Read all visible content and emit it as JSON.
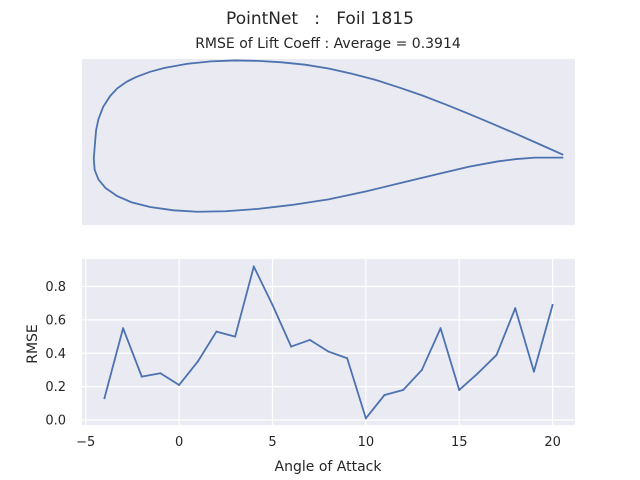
{
  "figure": {
    "suptitle": "PointNet   :   Foil 1815",
    "background_color": "#ffffff",
    "axes_facecolor": "#eaeaf2",
    "grid_color": "#ffffff",
    "line_color": "#4c72b0",
    "text_color": "#262626"
  },
  "chart_data": [
    {
      "type": "line",
      "title": "RMSE of Lift Coeff : Average = 0.3914",
      "xlabel": "",
      "ylabel": "",
      "axes_visible": false,
      "grid": false,
      "aspect": "equal",
      "xlim": [
        -0.025,
        1.025
      ],
      "ylim": [
        -0.14,
        0.21
      ],
      "series": [
        {
          "x": [
            1.0,
            0.95,
            0.9,
            0.85,
            0.8,
            0.75,
            0.7,
            0.65,
            0.6,
            0.55,
            0.5,
            0.45,
            0.4,
            0.35,
            0.3,
            0.25,
            0.2,
            0.15,
            0.12,
            0.09,
            0.07,
            0.05,
            0.035,
            0.02,
            0.01,
            0.005,
            0.0,
            0.002,
            0.01,
            0.025,
            0.05,
            0.08,
            0.12,
            0.17,
            0.22,
            0.28,
            0.35,
            0.42,
            0.5,
            0.58,
            0.66,
            0.74,
            0.8,
            0.86,
            0.9,
            0.94,
            0.97,
            1.0
          ],
          "y": [
            0.008,
            0.03,
            0.052,
            0.073,
            0.094,
            0.114,
            0.133,
            0.15,
            0.166,
            0.179,
            0.19,
            0.198,
            0.203,
            0.206,
            0.207,
            0.205,
            0.2,
            0.191,
            0.183,
            0.172,
            0.162,
            0.148,
            0.132,
            0.109,
            0.083,
            0.06,
            0.0,
            -0.024,
            -0.044,
            -0.062,
            -0.079,
            -0.092,
            -0.102,
            -0.109,
            -0.112,
            -0.111,
            -0.106,
            -0.098,
            -0.086,
            -0.069,
            -0.05,
            -0.031,
            -0.017,
            -0.006,
            -0.001,
            0.002,
            0.002,
            0.002
          ]
        }
      ]
    },
    {
      "type": "line",
      "title": "",
      "xlabel": "Angle of Attack",
      "ylabel": "RMSE",
      "axes_visible": true,
      "grid": true,
      "xlim": [
        -5.2,
        21.2
      ],
      "ylim": [
        -0.03,
        0.965
      ],
      "xticks": [
        -5,
        0,
        5,
        10,
        15,
        20
      ],
      "yticks": [
        0.0,
        0.2,
        0.4,
        0.6,
        0.8
      ],
      "xtick_labels": [
        "−5",
        "0",
        "5",
        "10",
        "15",
        "20"
      ],
      "ytick_labels": [
        "0.0",
        "0.2",
        "0.4",
        "0.6",
        "0.8"
      ],
      "series": [
        {
          "x": [
            -4,
            -3,
            -2,
            -1,
            0,
            1,
            2,
            3,
            4,
            5,
            6,
            7,
            8,
            9,
            10,
            11,
            12,
            13,
            14,
            15,
            16,
            17,
            18,
            19,
            20
          ],
          "y": [
            0.13,
            0.55,
            0.26,
            0.28,
            0.21,
            0.35,
            0.53,
            0.5,
            0.92,
            0.69,
            0.44,
            0.48,
            0.41,
            0.37,
            0.01,
            0.15,
            0.18,
            0.3,
            0.55,
            0.18,
            0.28,
            0.39,
            0.67,
            0.29,
            0.69
          ]
        }
      ]
    }
  ]
}
